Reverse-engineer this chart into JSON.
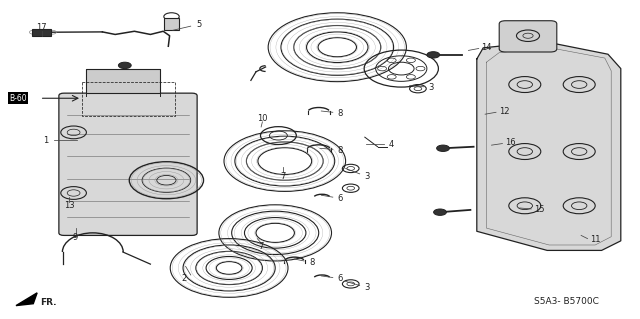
{
  "bg_color": "#ffffff",
  "diagram_code": "S5A3- B5700C",
  "ref_label": "B-60",
  "fr_label": "FR.",
  "dark": "#222222",
  "gray": "#888888",
  "light_gray": "#e0e0e0"
}
